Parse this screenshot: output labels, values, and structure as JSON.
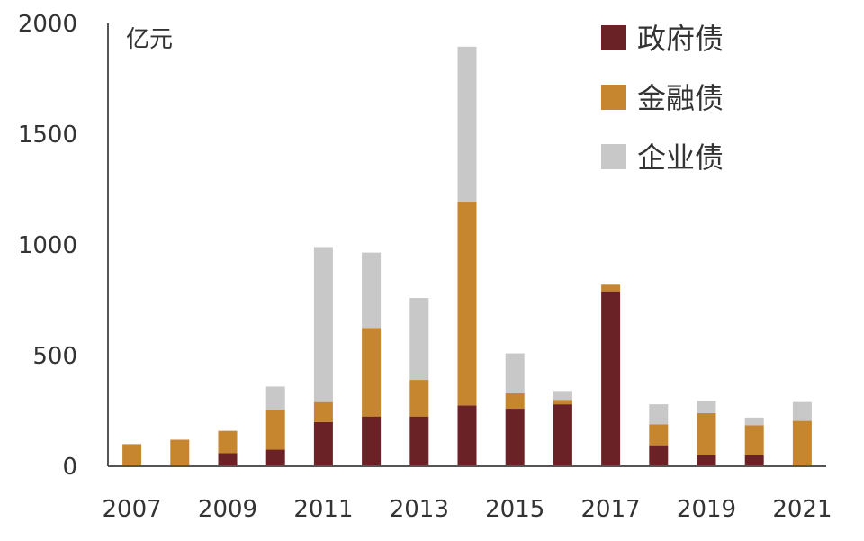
{
  "chart_data": {
    "type": "bar",
    "stacked": true,
    "title": "",
    "xlabel": "",
    "ylabel": "亿元",
    "ylim": [
      0,
      2000
    ],
    "yticks": [
      0,
      500,
      1000,
      1500,
      2000
    ],
    "xtick_labels": [
      "2007",
      "2009",
      "2011",
      "2013",
      "2015",
      "2017",
      "2019",
      "2021"
    ],
    "categories": [
      "2007",
      "2008",
      "2009",
      "2010",
      "2011",
      "2012",
      "2013",
      "2014",
      "2015",
      "2016",
      "2017",
      "2018",
      "2019",
      "2020",
      "2021"
    ],
    "series": [
      {
        "name": "政府债",
        "color": "#6b2226",
        "values": [
          0,
          0,
          60,
          75,
          200,
          225,
          225,
          275,
          260,
          280,
          790,
          95,
          50,
          50,
          0
        ]
      },
      {
        "name": "金融债",
        "color": "#c5862f",
        "values": [
          100,
          120,
          100,
          180,
          90,
          400,
          165,
          920,
          70,
          20,
          30,
          95,
          190,
          135,
          205
        ]
      },
      {
        "name": "企业债",
        "color": "#c8c8c8",
        "values": [
          0,
          0,
          0,
          105,
          700,
          340,
          370,
          700,
          180,
          40,
          0,
          90,
          55,
          35,
          85
        ]
      }
    ],
    "grid": false,
    "legend_position": "top-right"
  }
}
